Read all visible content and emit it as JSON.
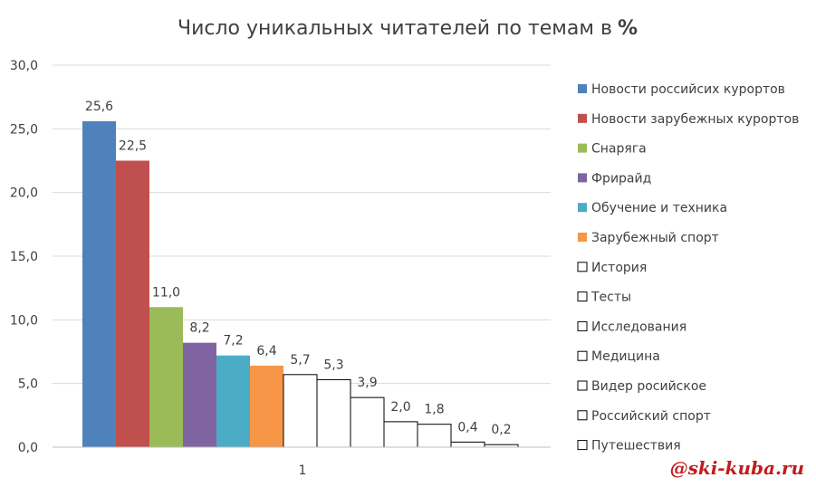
{
  "chart_data": {
    "type": "bar",
    "title": "Число уникальных читателей по темам в",
    "title_suffix": "%",
    "categories": [
      "1"
    ],
    "ylim": [
      0,
      30
    ],
    "yticks": [
      "0,0",
      "5,0",
      "10,0",
      "15,0",
      "20,0",
      "25,0",
      "30,0"
    ],
    "grid": true,
    "legend_position": "right",
    "series": [
      {
        "name": "Новости российсих курортов",
        "values": [
          25.6
        ],
        "label": "25,6",
        "color": "#4f81bd",
        "outline": "#4f81bd"
      },
      {
        "name": "Новости зарубежных курортов",
        "values": [
          22.5
        ],
        "label": "22,5",
        "color": "#c0504d",
        "outline": "#c0504d"
      },
      {
        "name": "Снаряга",
        "values": [
          11.0
        ],
        "label": "11,0",
        "color": "#9bbb59",
        "outline": "#9bbb59"
      },
      {
        "name": "Фрирайд",
        "values": [
          8.2
        ],
        "label": "8,2",
        "color": "#8064a2",
        "outline": "#8064a2"
      },
      {
        "name": "Обучение и техника",
        "values": [
          7.2
        ],
        "label": "7,2",
        "color": "#4bacc6",
        "outline": "#4bacc6"
      },
      {
        "name": "Зарубежный спорт",
        "values": [
          6.4
        ],
        "label": "6,4",
        "color": "#f79646",
        "outline": "#f79646"
      },
      {
        "name": "История",
        "values": [
          5.7
        ],
        "label": "5,7",
        "color": "#ffffff",
        "outline": "#000000"
      },
      {
        "name": "Тесты",
        "values": [
          5.3
        ],
        "label": "5,3",
        "color": "#ffffff",
        "outline": "#000000"
      },
      {
        "name": "Исследования",
        "values": [
          3.9
        ],
        "label": "3,9",
        "color": "#ffffff",
        "outline": "#000000"
      },
      {
        "name": "Медицина",
        "values": [
          2.0
        ],
        "label": "2,0",
        "color": "#ffffff",
        "outline": "#000000"
      },
      {
        "name": "Видер росийское",
        "values": [
          1.8
        ],
        "label": "1,8",
        "color": "#ffffff",
        "outline": "#000000"
      },
      {
        "name": "Российский спорт",
        "values": [
          0.4
        ],
        "label": "0,4",
        "color": "#ffffff",
        "outline": "#000000"
      },
      {
        "name": "Путешествия",
        "values": [
          0.2
        ],
        "label": "0,2",
        "color": "#ffffff",
        "outline": "#000000"
      }
    ]
  },
  "watermark": "@ski-kuba.ru"
}
